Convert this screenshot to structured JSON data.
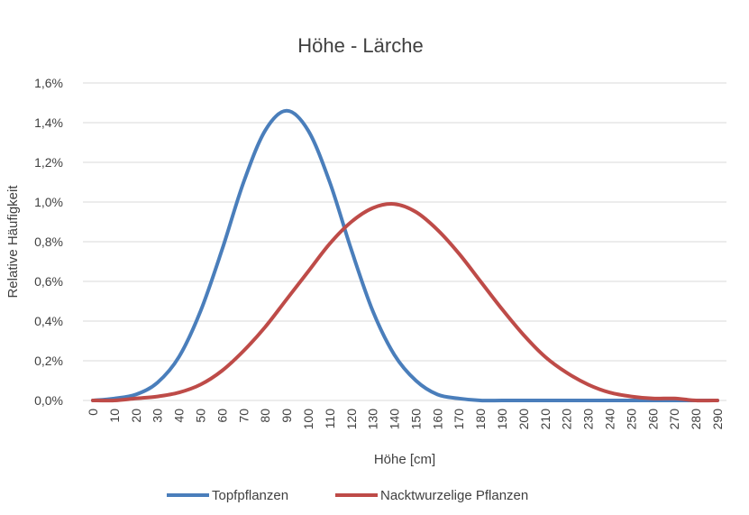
{
  "chart_data": {
    "type": "line",
    "title": "Höhe - Lärche",
    "xlabel": "Höhe [cm]",
    "ylabel": "Relative Häufigkeit",
    "x": [
      0,
      10,
      20,
      30,
      40,
      50,
      60,
      70,
      80,
      90,
      100,
      110,
      120,
      130,
      140,
      150,
      160,
      170,
      180,
      190,
      200,
      210,
      220,
      230,
      240,
      250,
      260,
      270,
      280,
      290
    ],
    "x_tick_labels": [
      "0",
      "10",
      "20",
      "30",
      "40",
      "50",
      "60",
      "70",
      "80",
      "90",
      "100",
      "110",
      "120",
      "130",
      "140",
      "150",
      "160",
      "170",
      "180",
      "190",
      "200",
      "210",
      "220",
      "230",
      "240",
      "250",
      "260",
      "270",
      "280",
      "290"
    ],
    "y_tick_labels": [
      "0,0%",
      "0,2%",
      "0,4%",
      "0,6%",
      "0,8%",
      "1,0%",
      "1,2%",
      "1,4%",
      "1,6%"
    ],
    "ylim": [
      0,
      1.6
    ],
    "y_unit": "%",
    "grid": true,
    "legend_position": "bottom",
    "series": [
      {
        "name": "Topfpflanzen",
        "color": "#4a7ebb",
        "values": [
          0.0,
          0.01,
          0.03,
          0.09,
          0.22,
          0.45,
          0.76,
          1.1,
          1.36,
          1.46,
          1.36,
          1.1,
          0.76,
          0.45,
          0.23,
          0.1,
          0.03,
          0.01,
          0.0,
          0.0,
          0.0,
          0.0,
          0.0,
          0.0,
          0.0,
          0.0,
          0.0,
          0.0,
          0.0,
          0.0
        ]
      },
      {
        "name": "Nacktwurzelige Pflanzen",
        "color": "#be4b48",
        "values": [
          0.0,
          0.0,
          0.01,
          0.02,
          0.04,
          0.08,
          0.15,
          0.25,
          0.37,
          0.51,
          0.65,
          0.79,
          0.9,
          0.97,
          0.99,
          0.95,
          0.86,
          0.74,
          0.6,
          0.46,
          0.33,
          0.22,
          0.14,
          0.08,
          0.04,
          0.02,
          0.01,
          0.01,
          0.0,
          0.0
        ]
      }
    ]
  }
}
